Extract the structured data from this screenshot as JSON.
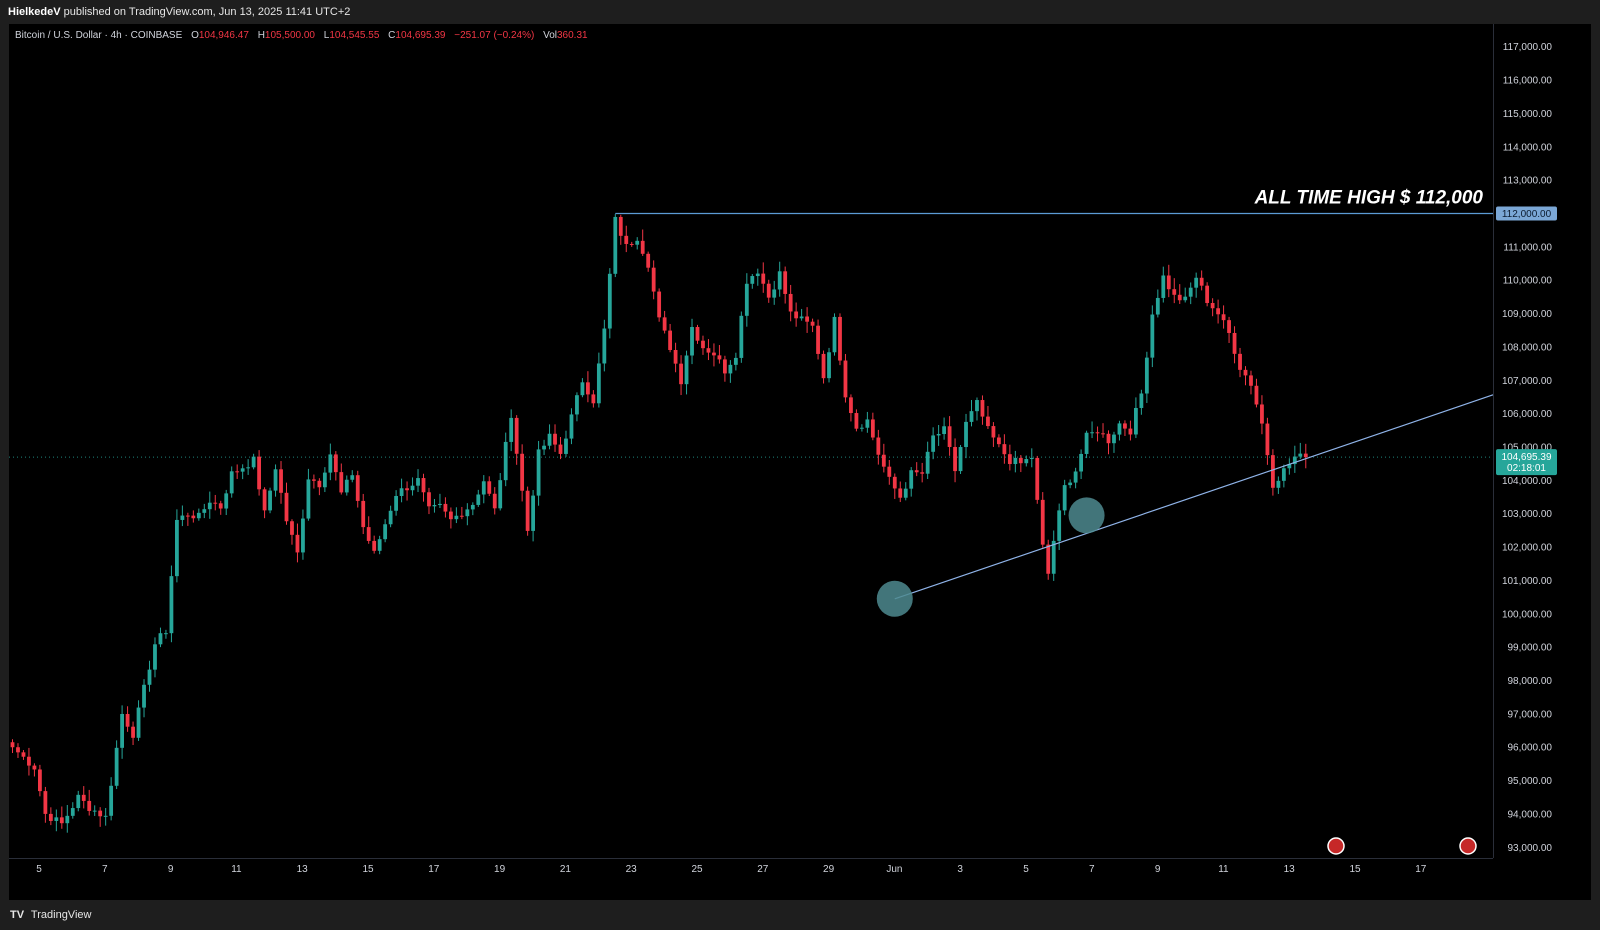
{
  "publisher": {
    "author": "HielkedeV",
    "text": "published on TradingView.com, Jun 13, 2025 11:41 UTC+2"
  },
  "legend": {
    "symbol": "Bitcoin / U.S. Dollar · 4h · COINBASE",
    "open_label": "O",
    "open": "104,946.47",
    "high_label": "H",
    "high": "105,500.00",
    "low_label": "L",
    "low": "104,545.55",
    "close_label": "C",
    "close": "104,695.39",
    "change": "−251.07 (−0.24%)",
    "vol_label": "Vol",
    "vol": "360.31"
  },
  "footer": {
    "brand": "TradingView",
    "logo": "TV"
  },
  "colors": {
    "up": "#26a69a",
    "down": "#f23645",
    "background": "#000000",
    "ath_line": "#5b9bd5",
    "trendline": "#8fb3e8",
    "circle": "#4d8a8f",
    "last_price": "#26a69a",
    "ath_tag": "#7ba7d6"
  },
  "chart_data": {
    "type": "candlestick",
    "timeframe": "4h",
    "ylim": [
      92500,
      117500
    ],
    "yticks": [
      "117,000.00",
      "116,000.00",
      "115,000.00",
      "114,000.00",
      "113,000.00",
      "112,000.00",
      "111,000.00",
      "110,000.00",
      "109,000.00",
      "108,000.00",
      "107,000.00",
      "106,000.00",
      "105,000.00",
      "104,000.00",
      "103,000.00",
      "102,000.00",
      "101,000.00",
      "100,000.00",
      "99,000.00",
      "98,000.00",
      "97,000.00",
      "96,000.00",
      "95,000.00",
      "94,000.00",
      "93,000.00"
    ],
    "xticks": [
      "5",
      "7",
      "9",
      "11",
      "13",
      "15",
      "17",
      "19",
      "21",
      "23",
      "25",
      "27",
      "29",
      "Jun",
      "3",
      "5",
      "7",
      "9",
      "11",
      "13",
      "15",
      "17"
    ],
    "annotation": {
      "text": "ALL TIME HIGH $ 112,000",
      "price": 112000,
      "price_tag": "112,000.00"
    },
    "last_price": {
      "price": 104695.39,
      "label": "104,695.39",
      "countdown": "02:18:01"
    },
    "trendline": {
      "from_candle": 161,
      "from_price": 100450,
      "to_candle": 236,
      "to_price": 104650
    },
    "circles": [
      {
        "candle": 161,
        "price": 100450
      },
      {
        "candle": 196,
        "price": 102950
      }
    ],
    "keypoints": [
      [
        0,
        96000
      ],
      [
        4,
        95400
      ],
      [
        6,
        94000
      ],
      [
        9,
        93700
      ],
      [
        12,
        94500
      ],
      [
        14,
        94200
      ],
      [
        17,
        93900
      ],
      [
        20,
        97000
      ],
      [
        22,
        96400
      ],
      [
        26,
        99100
      ],
      [
        28,
        99500
      ],
      [
        30,
        102800
      ],
      [
        32,
        103000
      ],
      [
        34,
        102900
      ],
      [
        36,
        103400
      ],
      [
        38,
        103200
      ],
      [
        40,
        104200
      ],
      [
        44,
        104600
      ],
      [
        46,
        103000
      ],
      [
        48,
        104400
      ],
      [
        50,
        102800
      ],
      [
        52,
        101800
      ],
      [
        54,
        104100
      ],
      [
        56,
        103900
      ],
      [
        58,
        104800
      ],
      [
        60,
        103600
      ],
      [
        62,
        104200
      ],
      [
        64,
        102600
      ],
      [
        66,
        101800
      ],
      [
        70,
        103600
      ],
      [
        74,
        104000
      ],
      [
        76,
        103100
      ],
      [
        78,
        103200
      ],
      [
        80,
        102800
      ],
      [
        84,
        103300
      ],
      [
        86,
        104000
      ],
      [
        88,
        103100
      ],
      [
        91,
        106000
      ],
      [
        94,
        102500
      ],
      [
        96,
        104800
      ],
      [
        98,
        105300
      ],
      [
        100,
        104800
      ],
      [
        104,
        107000
      ],
      [
        106,
        106400
      ],
      [
        108,
        108500
      ],
      [
        110,
        111800
      ],
      [
        112,
        111000
      ],
      [
        114,
        111300
      ],
      [
        116,
        110500
      ],
      [
        118,
        108800
      ],
      [
        120,
        108000
      ],
      [
        122,
        107000
      ],
      [
        124,
        108600
      ],
      [
        126,
        108000
      ],
      [
        128,
        107800
      ],
      [
        130,
        107300
      ],
      [
        132,
        107800
      ],
      [
        134,
        110000
      ],
      [
        136,
        110300
      ],
      [
        138,
        109500
      ],
      [
        140,
        110200
      ],
      [
        142,
        109000
      ],
      [
        144,
        108800
      ],
      [
        146,
        108600
      ],
      [
        148,
        107100
      ],
      [
        150,
        108800
      ],
      [
        152,
        106600
      ],
      [
        154,
        105600
      ],
      [
        156,
        105800
      ],
      [
        158,
        104800
      ],
      [
        160,
        104000
      ],
      [
        162,
        103500
      ],
      [
        164,
        104200
      ],
      [
        166,
        104200
      ],
      [
        168,
        105300
      ],
      [
        170,
        105500
      ],
      [
        172,
        104300
      ],
      [
        174,
        105700
      ],
      [
        176,
        106300
      ],
      [
        178,
        105500
      ],
      [
        180,
        105000
      ],
      [
        182,
        104600
      ],
      [
        184,
        104500
      ],
      [
        186,
        104700
      ],
      [
        188,
        102000
      ],
      [
        189,
        101200
      ],
      [
        190,
        102200
      ],
      [
        192,
        103800
      ],
      [
        194,
        104300
      ],
      [
        196,
        105300
      ],
      [
        198,
        105500
      ],
      [
        200,
        105200
      ],
      [
        202,
        105700
      ],
      [
        204,
        105500
      ],
      [
        206,
        106600
      ],
      [
        208,
        109000
      ],
      [
        210,
        110100
      ],
      [
        212,
        109500
      ],
      [
        214,
        109400
      ],
      [
        216,
        110100
      ],
      [
        218,
        109400
      ],
      [
        220,
        109000
      ],
      [
        222,
        108400
      ],
      [
        224,
        107400
      ],
      [
        226,
        106900
      ],
      [
        228,
        105700
      ],
      [
        230,
        103900
      ],
      [
        232,
        104300
      ],
      [
        234,
        104700
      ],
      [
        236,
        104695
      ]
    ]
  }
}
